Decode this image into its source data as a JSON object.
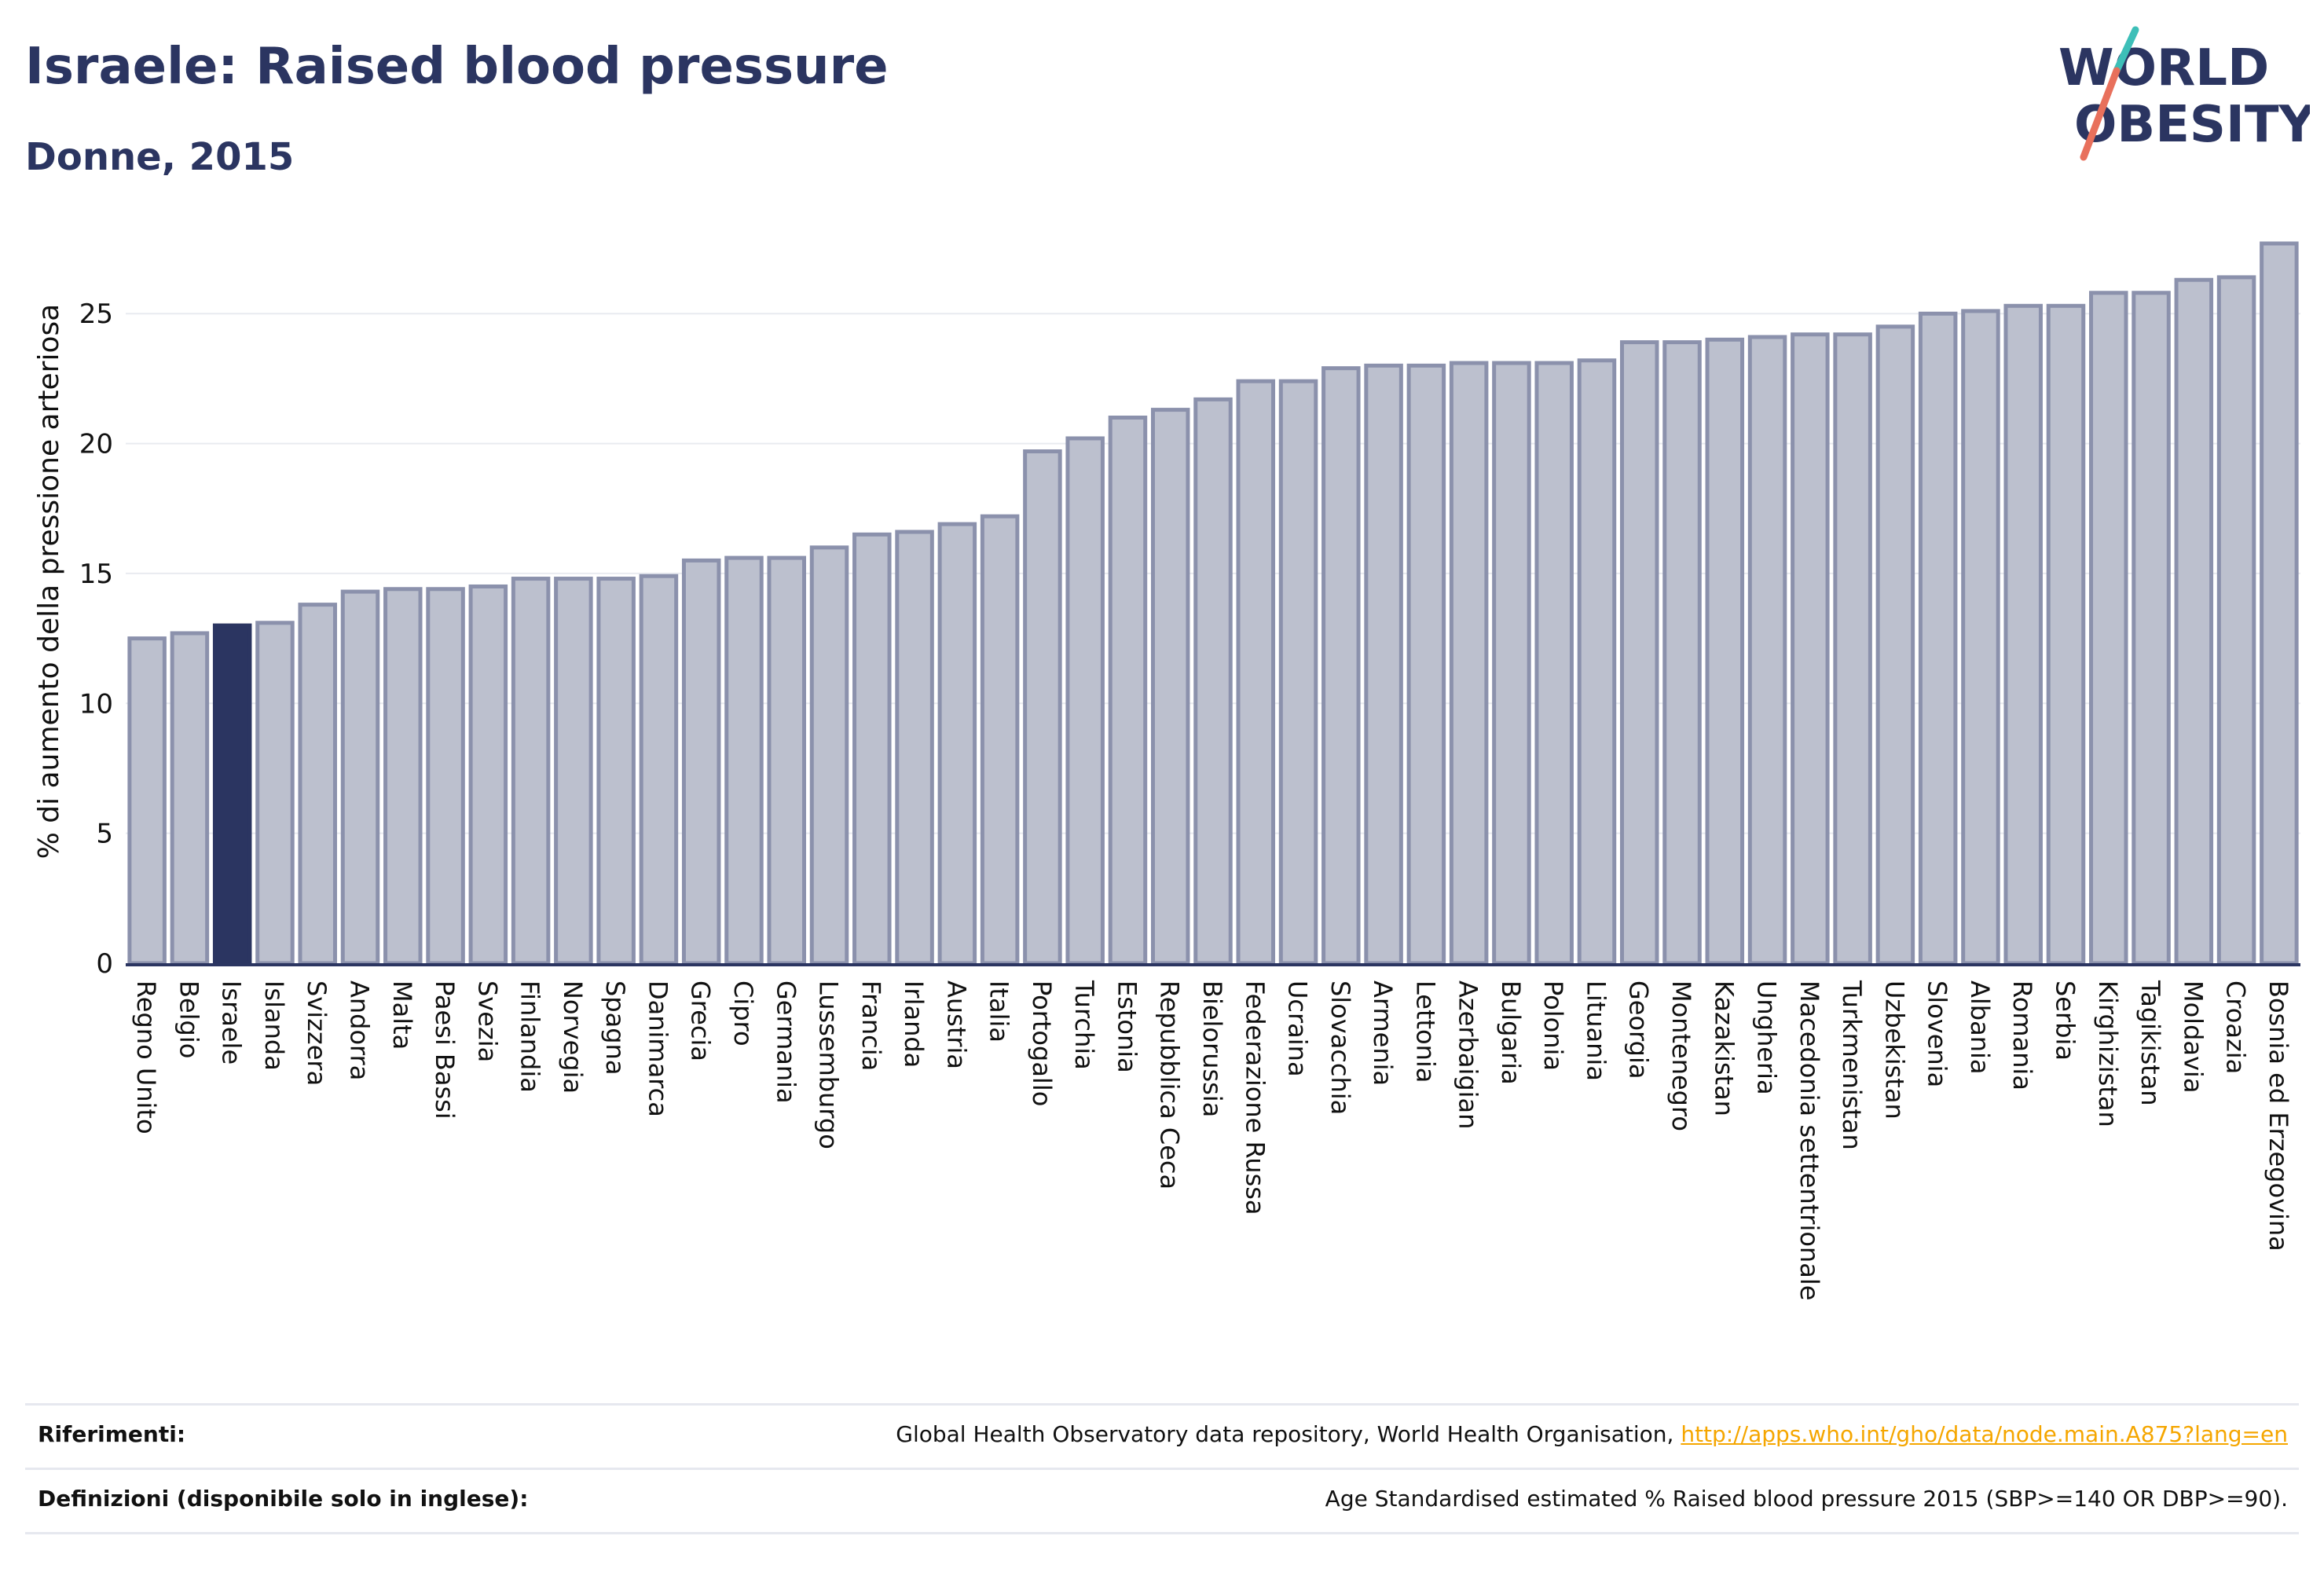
{
  "header": {
    "title": "Israele: Raised blood pressure",
    "subtitle": "Donne, 2015"
  },
  "logo": {
    "line1": "WORLD",
    "line2": "OBESITY",
    "colors": {
      "text": "#2b3561",
      "accent_teal": "#3dbfb8",
      "accent_coral": "#e8705c"
    }
  },
  "colors": {
    "bar_fill": "#bcc0ce",
    "bar_stroke": "#8b91ac",
    "highlight_fill": "#2b3561",
    "grid": "#e9ebf0",
    "axis": "#2b3561"
  },
  "chart_data": {
    "type": "bar",
    "ylabel": "% di aumento della pressione arteriosa",
    "ylim": [
      0,
      28
    ],
    "yticks": [
      0,
      5,
      10,
      15,
      20,
      25
    ],
    "grid": true,
    "highlight": "Israele",
    "categories": [
      "Regno Unito",
      "Belgio",
      "Israele",
      "Islanda",
      "Svizzera",
      "Andorra",
      "Malta",
      "Paesi Bassi",
      "Svezia",
      "Finlandia",
      "Norvegia",
      "Spagna",
      "Danimarca",
      "Grecia",
      "Cipro",
      "Germania",
      "Lussemburgo",
      "Francia",
      "Irlanda",
      "Austria",
      "Italia",
      "Portogallo",
      "Turchia",
      "Estonia",
      "Repubblica Ceca",
      "Bielorussia",
      "Federazione Russa",
      "Ucraina",
      "Slovacchia",
      "Armenia",
      "Lettonia",
      "Azerbaigian",
      "Bulgaria",
      "Polonia",
      "Lituania",
      "Georgia",
      "Montenegro",
      "Kazakistan",
      "Ungheria",
      "Macedonia settentrionale",
      "Turkmenistan",
      "Uzbekistan",
      "Slovenia",
      "Albania",
      "Romania",
      "Serbia",
      "Kirghizistan",
      "Tagikistan",
      "Moldavia",
      "Croazia",
      "Bosnia ed Erzegovina"
    ],
    "values": [
      12.5,
      12.7,
      13.0,
      13.1,
      13.8,
      14.3,
      14.4,
      14.4,
      14.5,
      14.8,
      14.8,
      14.8,
      14.9,
      15.5,
      15.6,
      15.6,
      16.0,
      16.5,
      16.6,
      16.9,
      17.2,
      19.7,
      20.2,
      21.0,
      21.3,
      21.7,
      22.4,
      22.4,
      22.9,
      23.0,
      23.0,
      23.1,
      23.1,
      23.1,
      23.2,
      23.9,
      23.9,
      24.0,
      24.1,
      24.2,
      24.2,
      24.5,
      25.0,
      25.1,
      25.3,
      25.3,
      25.8,
      25.8,
      26.3,
      26.4,
      27.7
    ]
  },
  "footer": {
    "references_label": "Riferimenti:",
    "references_text": "Global Health Observatory data repository, World Health Organisation, ",
    "references_link": "http://apps.who.int/gho/data/node.main.A875?lang=en",
    "definitions_label": "Definizioni (disponibile solo in inglese):",
    "definitions_text": "Age Standardised estimated % Raised blood pressure 2015 (SBP>=140 OR DBP>=90)."
  }
}
